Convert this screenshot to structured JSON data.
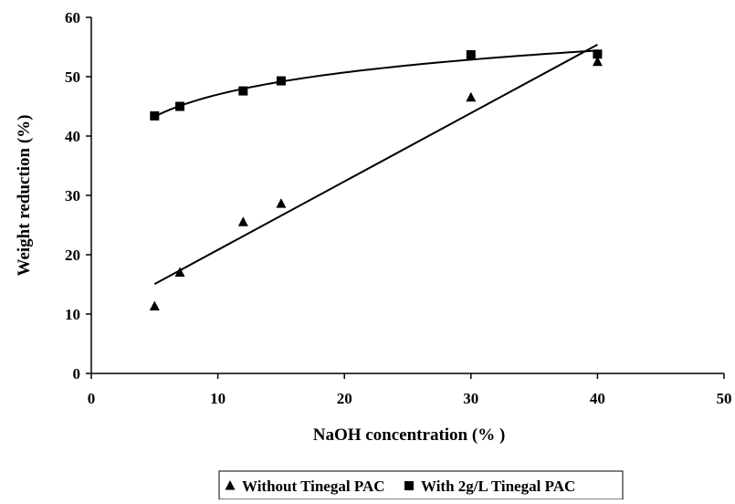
{
  "chart_data": {
    "type": "scatter",
    "title": "",
    "xlabel": "NaOH concentration (% )",
    "ylabel": "Weight reduction (%)",
    "xlim": [
      0,
      50
    ],
    "ylim": [
      0,
      60
    ],
    "x_ticks": [
      0,
      10,
      20,
      30,
      40,
      50
    ],
    "y_ticks": [
      0,
      10,
      20,
      30,
      40,
      50,
      60
    ],
    "grid": false,
    "legend_position": "bottom",
    "series": [
      {
        "name": "Without Tinegal PAC",
        "marker": "triangle",
        "color": "#000000",
        "x": [
          5,
          7,
          12,
          15,
          30,
          40
        ],
        "y": [
          11.3,
          17.0,
          25.5,
          28.6,
          46.5,
          52.5
        ],
        "trendline": "linear"
      },
      {
        "name": "With 2g/L Tinegal PAC",
        "marker": "square",
        "color": "#000000",
        "x": [
          5,
          7,
          12,
          15,
          30,
          40
        ],
        "y": [
          43.4,
          45.0,
          47.6,
          49.3,
          53.7,
          53.8
        ],
        "trendline": "logarithmic"
      }
    ]
  }
}
